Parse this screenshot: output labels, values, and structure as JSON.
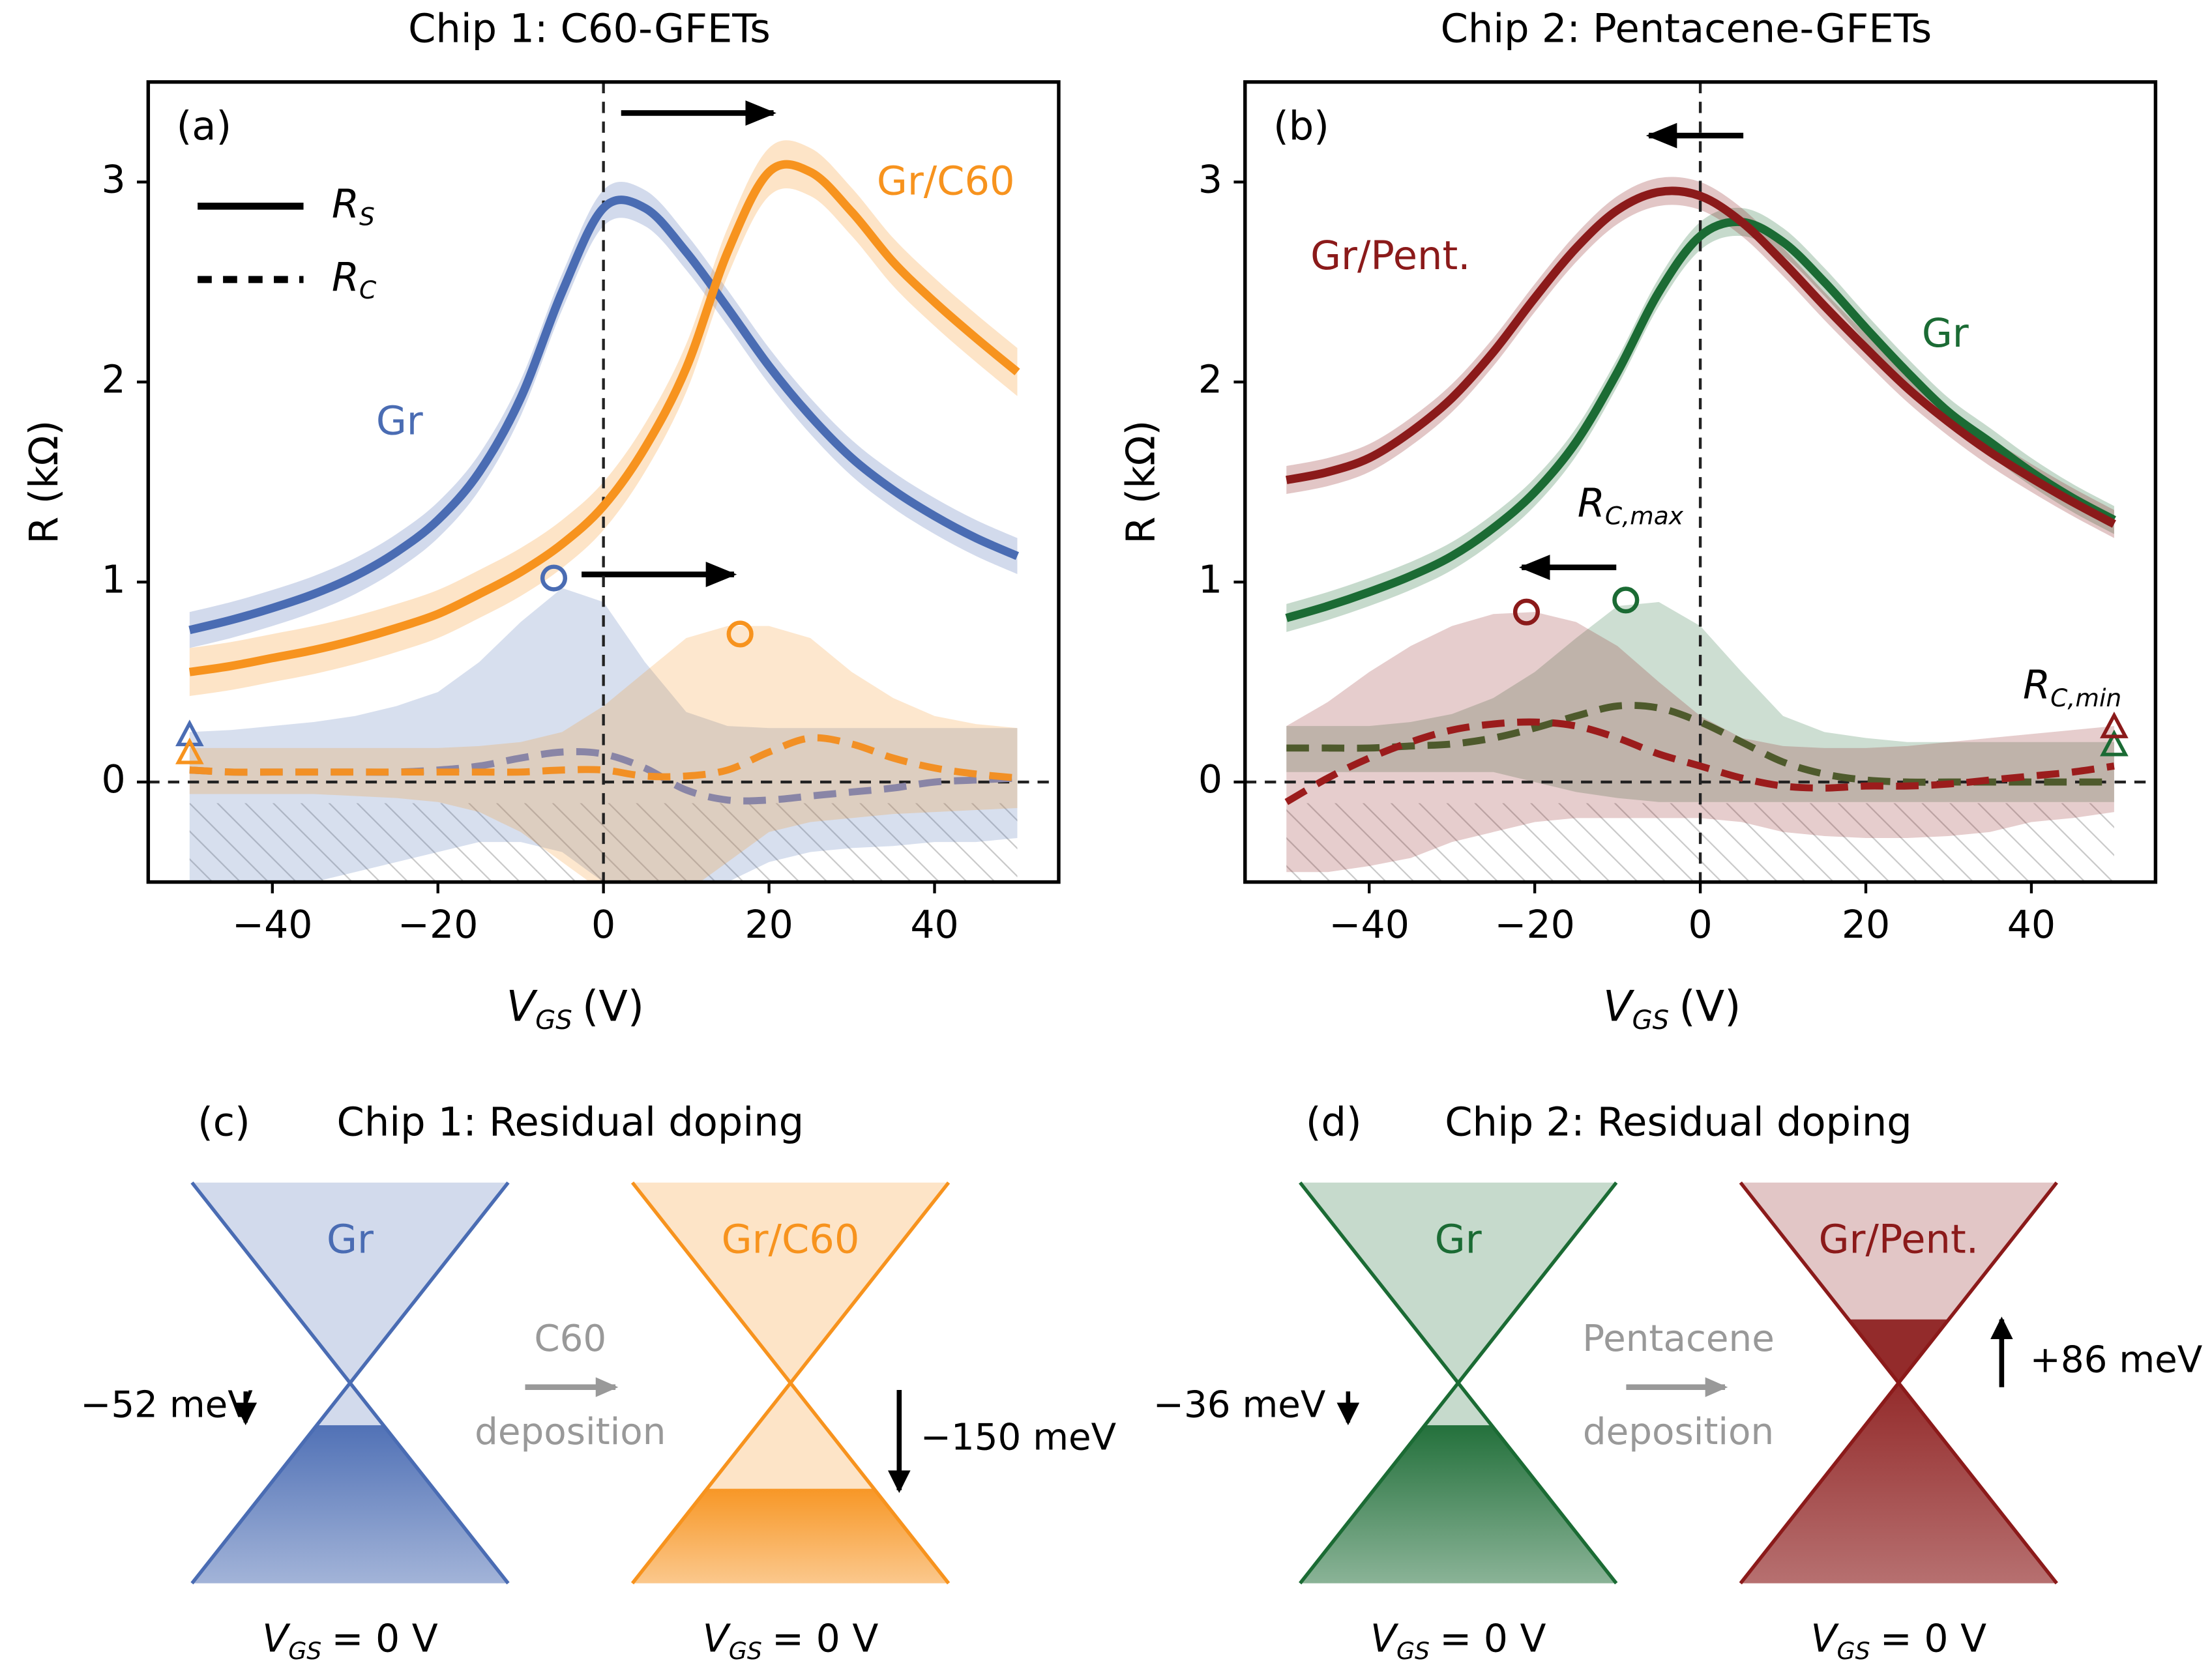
{
  "chart_data": [
    {
      "type": "line",
      "title": "Chip 1: C60-GFETs",
      "panel": "(a)",
      "x_label": {
        "symbol": "V",
        "subscript": "GS",
        "unit": "(V)"
      },
      "y_label": "R  (kΩ)",
      "x": [
        -50,
        -45,
        -40,
        -35,
        -30,
        -25,
        -20,
        -15,
        -10,
        -5,
        0,
        5,
        10,
        15,
        20,
        25,
        30,
        35,
        40,
        45,
        50
      ],
      "xlim": [
        -55,
        55
      ],
      "ylim": [
        -0.5,
        3.5
      ],
      "xticks": [
        {
          "value": -40,
          "label": "−40"
        },
        {
          "value": -20,
          "label": "−20"
        },
        0,
        20,
        40
      ],
      "yticks": [
        0,
        1,
        2,
        3
      ],
      "zero_lines": {
        "x": 0,
        "y": 0
      },
      "legend": [
        {
          "symbol": "R",
          "subscript": "S",
          "style": "solid"
        },
        {
          "symbol": "R",
          "subscript": "C",
          "style": "dashed"
        }
      ],
      "series": [
        {
          "name": "Gr",
          "color": "#4a6cb3",
          "rc_color": "#8985a6",
          "values": [
            0.76,
            0.81,
            0.87,
            0.94,
            1.03,
            1.15,
            1.31,
            1.55,
            1.92,
            2.45,
            2.87,
            2.87,
            2.65,
            2.37,
            2.08,
            1.83,
            1.62,
            1.46,
            1.33,
            1.22,
            1.13
          ],
          "rs_band": 0.09,
          "rc_values": [
            0.06,
            0.05,
            0.05,
            0.05,
            0.05,
            0.05,
            0.06,
            0.08,
            0.12,
            0.15,
            0.14,
            0.07,
            -0.04,
            -0.09,
            -0.09,
            -0.07,
            -0.05,
            -0.03,
            0,
            0.01,
            0.02
          ],
          "rc_band_upper": [
            0.25,
            0.26,
            0.28,
            0.3,
            0.33,
            0.38,
            0.45,
            0.6,
            0.8,
            0.97,
            0.9,
            0.6,
            0.35,
            0.28,
            0.27,
            0.27,
            0.27,
            0.27,
            0.27,
            0.27,
            0.27
          ],
          "rc_band_lower": [
            -0.5,
            -0.5,
            -0.5,
            -0.5,
            -0.45,
            -0.4,
            -0.35,
            -0.3,
            -0.3,
            -0.35,
            -0.5,
            -0.5,
            -0.5,
            -0.5,
            -0.4,
            -0.35,
            -0.33,
            -0.32,
            -0.3,
            -0.3,
            -0.28
          ],
          "rc_max": {
            "x": -6,
            "y": 1.02
          },
          "rc_min": {
            "x": -50,
            "y": 0.23
          }
        },
        {
          "name": "Gr/C60",
          "color": "#f7931e",
          "rc_color": "#f29025",
          "values": [
            0.55,
            0.58,
            0.62,
            0.66,
            0.71,
            0.77,
            0.84,
            0.94,
            1.05,
            1.19,
            1.38,
            1.67,
            2.07,
            2.65,
            3.05,
            3.05,
            2.85,
            2.6,
            2.4,
            2.22,
            2.05
          ],
          "rs_band": 0.12,
          "rc_values": [
            0.06,
            0.05,
            0.05,
            0.05,
            0.05,
            0.05,
            0.05,
            0.05,
            0.05,
            0.06,
            0.06,
            0.03,
            0.03,
            0.06,
            0.15,
            0.22,
            0.19,
            0.12,
            0.07,
            0.04,
            0.02
          ],
          "rc_band_upper": [
            0.17,
            0.17,
            0.17,
            0.17,
            0.17,
            0.17,
            0.17,
            0.18,
            0.2,
            0.25,
            0.38,
            0.55,
            0.72,
            0.78,
            0.78,
            0.72,
            0.55,
            0.42,
            0.33,
            0.29,
            0.27
          ],
          "rc_band_lower": [
            -0.06,
            -0.06,
            -0.06,
            -0.06,
            -0.07,
            -0.08,
            -0.1,
            -0.15,
            -0.25,
            -0.4,
            -0.55,
            -0.6,
            -0.55,
            -0.4,
            -0.25,
            -0.2,
            -0.18,
            -0.16,
            -0.15,
            -0.14,
            -0.13
          ],
          "rc_max": {
            "x": 16.5,
            "y": 0.74
          },
          "rc_min": {
            "x": -50,
            "y": 0.14
          }
        }
      ]
    },
    {
      "type": "line",
      "title": "Chip 2: Pentacene-GFETs",
      "panel": "(b)",
      "x_label": {
        "symbol": "V",
        "subscript": "GS",
        "unit": "(V)"
      },
      "y_label": "R  (kΩ)",
      "x": [
        -50,
        -45,
        -40,
        -35,
        -30,
        -25,
        -20,
        -15,
        -10,
        -5,
        0,
        5,
        10,
        15,
        20,
        25,
        30,
        35,
        40,
        45,
        50
      ],
      "xlim": [
        -55,
        55
      ],
      "ylim": [
        -0.5,
        3.5
      ],
      "xticks": [
        {
          "value": -40,
          "label": "−40"
        },
        {
          "value": -20,
          "label": "−20"
        },
        0,
        20,
        40
      ],
      "yticks": [
        0,
        1,
        2,
        3
      ],
      "zero_lines": {
        "x": 0,
        "y": 0
      },
      "annotations": [
        {
          "symbol": "R",
          "subscript": "C,max"
        },
        {
          "symbol": "R",
          "subscript": "C,min"
        }
      ],
      "series": [
        {
          "name": "Gr",
          "color": "#1b6b34",
          "rc_color": "#4e5a2c",
          "values": [
            0.82,
            0.88,
            0.95,
            1.03,
            1.13,
            1.27,
            1.45,
            1.7,
            2.05,
            2.45,
            2.73,
            2.8,
            2.7,
            2.5,
            2.27,
            2.05,
            1.85,
            1.7,
            1.55,
            1.42,
            1.31
          ],
          "rs_band": 0.07,
          "rc_values": [
            0.17,
            0.17,
            0.17,
            0.18,
            0.19,
            0.22,
            0.27,
            0.33,
            0.38,
            0.37,
            0.3,
            0.2,
            0.1,
            0.04,
            0.01,
            0,
            0,
            0,
            0,
            0,
            0
          ],
          "rc_band_upper": [
            0.28,
            0.28,
            0.28,
            0.3,
            0.34,
            0.42,
            0.55,
            0.72,
            0.88,
            0.9,
            0.78,
            0.55,
            0.33,
            0.25,
            0.22,
            0.2,
            0.2,
            0.2,
            0.2,
            0.2,
            0.2
          ],
          "rc_band_lower": [
            0.05,
            0.05,
            0.05,
            0.05,
            0.05,
            0.05,
            0,
            -0.05,
            -0.08,
            -0.1,
            -0.1,
            -0.1,
            -0.1,
            -0.1,
            -0.1,
            -0.1,
            -0.1,
            -0.1,
            -0.1,
            -0.1,
            -0.1
          ],
          "rc_max": {
            "x": -9,
            "y": 0.91
          },
          "rc_min": {
            "x": 50,
            "y": 0.18
          }
        },
        {
          "name": "Gr/Pent.",
          "color": "#8b1a1a",
          "rc_color": "#9b1c1c",
          "values": [
            1.51,
            1.55,
            1.62,
            1.75,
            1.92,
            2.15,
            2.42,
            2.67,
            2.86,
            2.95,
            2.93,
            2.8,
            2.6,
            2.38,
            2.17,
            1.97,
            1.8,
            1.65,
            1.52,
            1.4,
            1.29
          ],
          "rs_band": 0.07,
          "rc_values": [
            -0.1,
            0.02,
            0.12,
            0.2,
            0.26,
            0.29,
            0.3,
            0.28,
            0.22,
            0.14,
            0.08,
            0.02,
            -0.02,
            -0.03,
            -0.02,
            -0.02,
            -0.01,
            0.01,
            0.03,
            0.05,
            0.08
          ],
          "rc_band_upper": [
            0.28,
            0.4,
            0.55,
            0.68,
            0.78,
            0.84,
            0.85,
            0.8,
            0.68,
            0.5,
            0.33,
            0.22,
            0.18,
            0.17,
            0.17,
            0.18,
            0.2,
            0.22,
            0.24,
            0.26,
            0.28
          ],
          "rc_band_lower": [
            -0.45,
            -0.45,
            -0.42,
            -0.38,
            -0.3,
            -0.25,
            -0.2,
            -0.18,
            -0.18,
            -0.18,
            -0.18,
            -0.2,
            -0.25,
            -0.27,
            -0.28,
            -0.28,
            -0.27,
            -0.25,
            -0.2,
            -0.18,
            -0.15
          ],
          "rc_max": {
            "x": -21,
            "y": 0.85
          },
          "rc_min": {
            "x": 50,
            "y": 0.27
          }
        }
      ]
    }
  ],
  "diagrams": [
    {
      "panel": "(c)",
      "title": "Chip 1: Residual doping",
      "cones": [
        {
          "label": "Gr",
          "color": "#4a6cb3",
          "shift": "−52 meV"
        },
        {
          "label": "Gr/C60",
          "color": "#f7931e",
          "shift": "−150 meV"
        }
      ],
      "transition": [
        "C60",
        "deposition"
      ],
      "caption": {
        "symbol": "V",
        "subscript": "GS",
        "text": "= 0 V"
      }
    },
    {
      "panel": "(d)",
      "title": "Chip 2: Residual doping",
      "cones": [
        {
          "label": "Gr",
          "color": "#1b6b34",
          "shift": "−36 meV"
        },
        {
          "label": "Gr/Pent.",
          "color": "#8b1a1a",
          "shift": "+86 meV"
        }
      ],
      "transition": [
        "Pentacene",
        "deposition"
      ],
      "caption": {
        "symbol": "V",
        "subscript": "GS",
        "text": "= 0 V"
      }
    }
  ]
}
